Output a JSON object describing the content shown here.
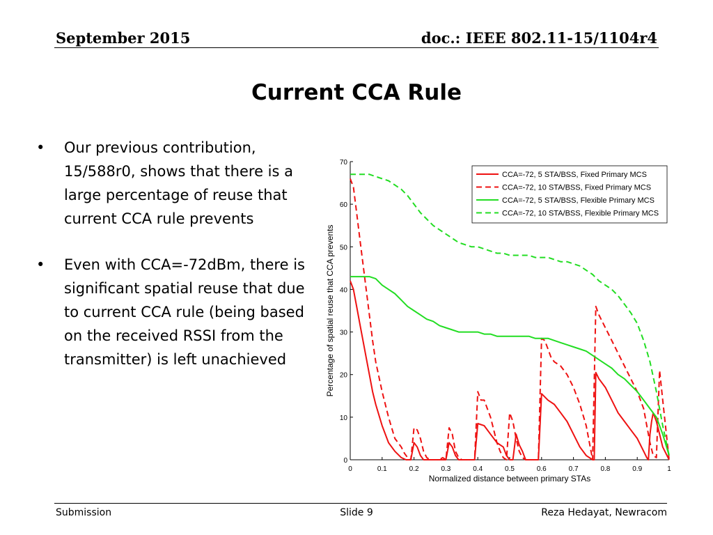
{
  "header": {
    "date": "September 2015",
    "doc": "doc.: IEEE 802.11-15/1104r4"
  },
  "slide": {
    "title": "Current CCA Rule",
    "bullets": [
      "Our previous contribution, 15/588r0, shows that there is a large percentage of reuse that current CCA rule prevents",
      "Even with CCA=-72dBm, there is significant spatial reuse that due to current CCA rule (being based on the received RSSI from the transmitter) is left unachieved"
    ],
    "bullet_glyph": "•"
  },
  "footer": {
    "left": "Submission",
    "center": "Slide 9",
    "right": "Reza Hedayat, Newracom"
  },
  "chart_data": {
    "type": "line",
    "xlabel": "Normalized distance between primary STAs",
    "ylabel": "Percentage of spatial reuse that CCA prevents",
    "xlim": [
      0,
      1
    ],
    "ylim": [
      0,
      70
    ],
    "xticks": [
      0,
      0.1,
      0.2,
      0.3,
      0.4,
      0.5,
      0.6,
      0.7,
      0.8,
      0.9,
      1
    ],
    "xtick_labels": [
      "0",
      "0.1",
      "0.2",
      "0.3",
      "0.4",
      "0.5",
      "0.6",
      "0.7",
      "0.8",
      "0.9",
      "1"
    ],
    "yticks": [
      0,
      10,
      20,
      30,
      40,
      50,
      60,
      70
    ],
    "ytick_labels": [
      "0",
      "10",
      "20",
      "30",
      "40",
      "50",
      "60",
      "70"
    ],
    "grid": false,
    "legend_position": "top-right",
    "series": [
      {
        "name": "CCA=-72, 5 STA/BSS, Fixed Primary MCS",
        "color": "#ee1111",
        "dash": "solid",
        "x": [
          0,
          0.01,
          0.02,
          0.03,
          0.04,
          0.05,
          0.06,
          0.07,
          0.08,
          0.1,
          0.12,
          0.14,
          0.16,
          0.175,
          0.185,
          0.19,
          0.2,
          0.21,
          0.22,
          0.23,
          0.235,
          0.245,
          0.3,
          0.31,
          0.32,
          0.33,
          0.34,
          0.35,
          0.39,
          0.4,
          0.42,
          0.44,
          0.46,
          0.48,
          0.49,
          0.5,
          0.51,
          0.52,
          0.53,
          0.54,
          0.55,
          0.59,
          0.6,
          0.62,
          0.64,
          0.66,
          0.68,
          0.7,
          0.72,
          0.74,
          0.76,
          0.765,
          0.77,
          0.78,
          0.8,
          0.82,
          0.84,
          0.86,
          0.88,
          0.9,
          0.92,
          0.93,
          0.935,
          0.94,
          0.945,
          0.95,
          0.96,
          0.97,
          0.98,
          1.0
        ],
        "y": [
          42,
          40,
          36,
          32,
          28,
          24,
          20,
          16,
          13,
          8,
          4,
          2,
          0.5,
          0,
          0,
          0,
          4,
          3,
          1,
          0,
          0,
          0,
          0,
          4,
          3,
          1,
          0,
          0,
          0,
          8.5,
          8,
          6,
          4,
          3,
          1,
          0,
          0,
          6,
          3.5,
          2,
          0,
          0,
          15.5,
          14,
          13,
          11,
          9,
          6,
          3,
          1,
          0,
          0,
          20.5,
          19,
          17,
          14,
          11,
          9,
          7,
          5,
          2,
          0.5,
          0,
          6,
          9,
          11,
          9,
          6,
          3,
          0
        ]
      },
      {
        "name": "CCA=-72, 10 STA/BSS, Fixed Primary MCS",
        "color": "#ee1111",
        "dash": "dashed",
        "x": [
          0,
          0.01,
          0.02,
          0.03,
          0.04,
          0.05,
          0.06,
          0.07,
          0.08,
          0.1,
          0.12,
          0.14,
          0.16,
          0.17,
          0.18,
          0.19,
          0.2,
          0.21,
          0.22,
          0.23,
          0.24,
          0.25,
          0.26,
          0.27,
          0.28,
          0.29,
          0.3,
          0.31,
          0.32,
          0.33,
          0.34,
          0.35,
          0.39,
          0.4,
          0.41,
          0.42,
          0.43,
          0.44,
          0.45,
          0.46,
          0.47,
          0.48,
          0.49,
          0.5,
          0.51,
          0.52,
          0.53,
          0.54,
          0.55,
          0.56,
          0.59,
          0.6,
          0.61,
          0.62,
          0.63,
          0.64,
          0.66,
          0.68,
          0.7,
          0.72,
          0.74,
          0.76,
          0.77,
          0.78,
          0.8,
          0.82,
          0.84,
          0.86,
          0.88,
          0.9,
          0.92,
          0.93,
          0.94,
          0.95,
          0.96,
          0.97,
          0.98,
          1.0
        ],
        "y": [
          66,
          64,
          58,
          52,
          46,
          40,
          34,
          28,
          23,
          16,
          10,
          5,
          3,
          1.5,
          0.5,
          0,
          7.5,
          7,
          5,
          2,
          0.5,
          0,
          0,
          0,
          0,
          0.5,
          0,
          7.5,
          6,
          2,
          0.5,
          0,
          0,
          16,
          14,
          14,
          12,
          10,
          7,
          4,
          2,
          0.5,
          0,
          11,
          9,
          5,
          2,
          0.5,
          0,
          0,
          0,
          28.5,
          28,
          26,
          24,
          23,
          22,
          20,
          17,
          13,
          8,
          0,
          36,
          34,
          31,
          28,
          25,
          22,
          19,
          16,
          12,
          8,
          4,
          1,
          0.5,
          21,
          14,
          0
        ]
      },
      {
        "name": "CCA=-72, 5 STA/BSS, Flexible Primary MCS",
        "color": "#22dd22",
        "dash": "solid",
        "x": [
          0,
          0.02,
          0.04,
          0.06,
          0.08,
          0.1,
          0.12,
          0.14,
          0.16,
          0.18,
          0.2,
          0.22,
          0.24,
          0.26,
          0.28,
          0.3,
          0.32,
          0.34,
          0.36,
          0.38,
          0.4,
          0.42,
          0.44,
          0.46,
          0.48,
          0.5,
          0.52,
          0.54,
          0.56,
          0.58,
          0.6,
          0.62,
          0.64,
          0.66,
          0.68,
          0.7,
          0.72,
          0.74,
          0.76,
          0.78,
          0.8,
          0.82,
          0.84,
          0.86,
          0.88,
          0.9,
          0.92,
          0.94,
          0.96,
          0.98,
          1.0
        ],
        "y": [
          43,
          43,
          43,
          43,
          42.5,
          41,
          40,
          39,
          37.5,
          36,
          35,
          34,
          33,
          32.5,
          31.5,
          31,
          30.5,
          30,
          30,
          30,
          30,
          29.5,
          29.5,
          29,
          29,
          29,
          29,
          29,
          29,
          28.5,
          28.5,
          28.5,
          28,
          27.5,
          27,
          26.5,
          26,
          25.5,
          24.5,
          23.5,
          22.5,
          21.5,
          20,
          19,
          17.5,
          16,
          14,
          12,
          10,
          6,
          1
        ]
      },
      {
        "name": "CCA=-72, 10 STA/BSS, Flexible Primary MCS",
        "color": "#22dd22",
        "dash": "dashed",
        "x": [
          0,
          0.02,
          0.04,
          0.06,
          0.08,
          0.1,
          0.12,
          0.14,
          0.16,
          0.18,
          0.2,
          0.22,
          0.24,
          0.26,
          0.28,
          0.3,
          0.32,
          0.34,
          0.36,
          0.38,
          0.4,
          0.42,
          0.44,
          0.46,
          0.48,
          0.5,
          0.52,
          0.54,
          0.56,
          0.58,
          0.6,
          0.62,
          0.64,
          0.66,
          0.68,
          0.7,
          0.72,
          0.74,
          0.76,
          0.78,
          0.8,
          0.82,
          0.84,
          0.86,
          0.88,
          0.9,
          0.92,
          0.94,
          0.96,
          0.98,
          1.0
        ],
        "y": [
          67,
          67,
          67,
          67,
          66.5,
          66,
          65.5,
          64.5,
          63.5,
          62,
          60,
          58,
          56.5,
          55,
          54,
          53,
          52,
          51,
          50.5,
          50,
          50,
          49.5,
          49,
          48.5,
          48.5,
          48,
          48,
          48,
          48,
          47.5,
          47.5,
          47.5,
          47,
          46.5,
          46.5,
          46,
          45.5,
          44.5,
          43.5,
          42,
          41,
          40,
          38.5,
          36.5,
          34.5,
          32,
          28,
          23,
          16,
          8,
          1
        ]
      }
    ]
  }
}
